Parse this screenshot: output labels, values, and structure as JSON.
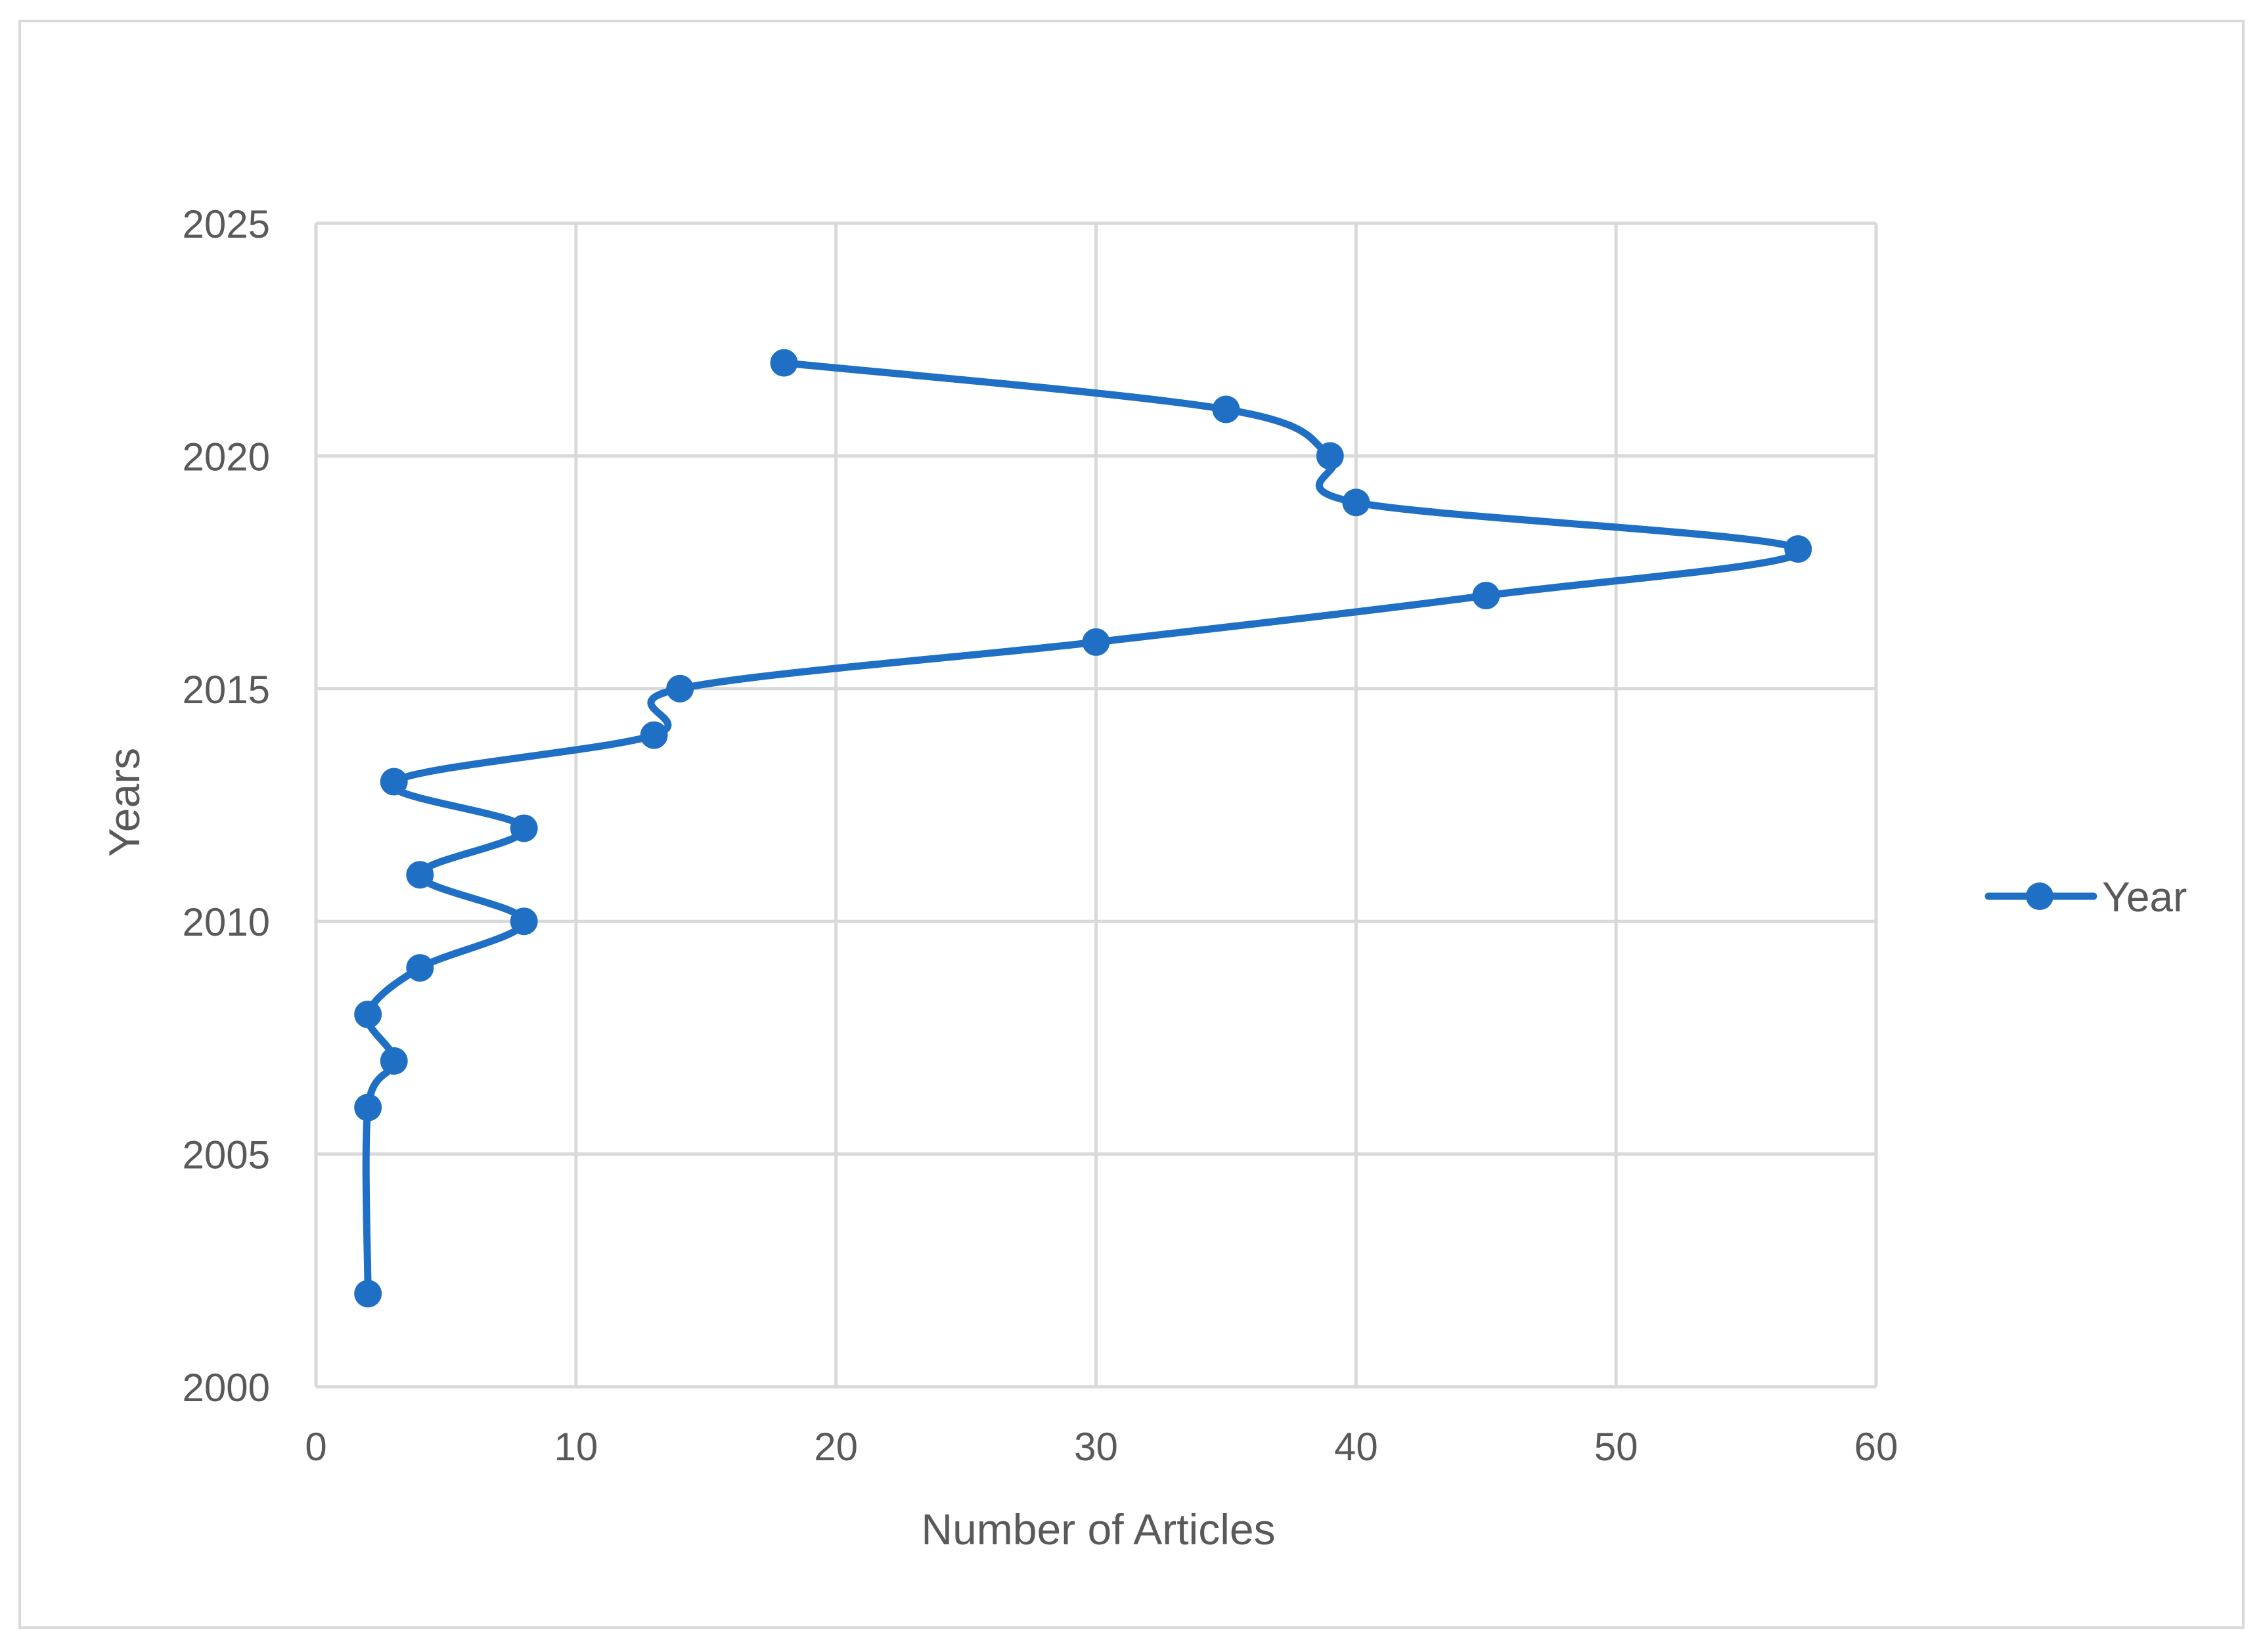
{
  "chart_data": {
    "type": "scatter",
    "title": "",
    "xlabel": "Number of Articles",
    "ylabel": "Years",
    "xlim": [
      0,
      60
    ],
    "ylim": [
      2000,
      2025
    ],
    "x_ticks": [
      0,
      10,
      20,
      30,
      40,
      50,
      60
    ],
    "y_ticks": [
      2000,
      2005,
      2010,
      2015,
      2020,
      2025
    ],
    "grid": true,
    "smooth_line": true,
    "markers": true,
    "legend_position": "right",
    "series": [
      {
        "name": "Year",
        "color": "#1f6fc5",
        "points": [
          {
            "x": 2,
            "y": 2002
          },
          {
            "x": 2,
            "y": 2006
          },
          {
            "x": 3,
            "y": 2007
          },
          {
            "x": 2,
            "y": 2008
          },
          {
            "x": 4,
            "y": 2009
          },
          {
            "x": 8,
            "y": 2010
          },
          {
            "x": 4,
            "y": 2011
          },
          {
            "x": 8,
            "y": 2012
          },
          {
            "x": 3,
            "y": 2013
          },
          {
            "x": 13,
            "y": 2014
          },
          {
            "x": 14,
            "y": 2015
          },
          {
            "x": 30,
            "y": 2016
          },
          {
            "x": 45,
            "y": 2017
          },
          {
            "x": 57,
            "y": 2018
          },
          {
            "x": 40,
            "y": 2019
          },
          {
            "x": 39,
            "y": 2020
          },
          {
            "x": 35,
            "y": 2021
          },
          {
            "x": 18,
            "y": 2022
          }
        ]
      }
    ]
  },
  "colors": {
    "series": "#1f6fc5",
    "grid": "#d9d9d9",
    "text": "#595959",
    "frame": "#d9d9d9"
  }
}
